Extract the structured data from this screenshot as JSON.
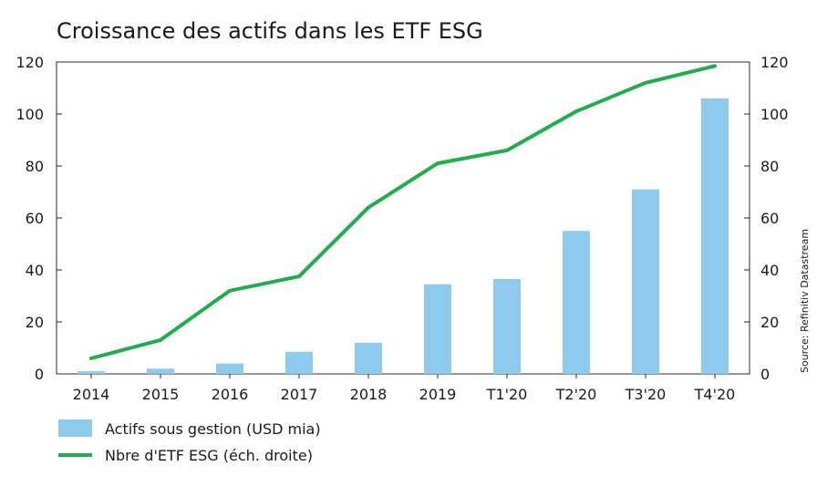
{
  "chart_data": {
    "type": "bar+line",
    "title": "Croissance des actifs dans les ETF ESG",
    "source": "Source: Refinitiv Datastream",
    "categories": [
      "2014",
      "2015",
      "2016",
      "2017",
      "2018",
      "2019",
      "T1'20",
      "T2'20",
      "T3'20",
      "T4'20"
    ],
    "y_left": {
      "ylim": [
        0,
        120
      ],
      "ticks": [
        "0",
        "20",
        "40",
        "60",
        "80",
        "100",
        "120"
      ]
    },
    "y_right": {
      "ylim": [
        0,
        120
      ],
      "ticks": [
        "0",
        "20",
        "40",
        "60",
        "80",
        "100",
        "120"
      ]
    },
    "series": [
      {
        "name": "Actifs sous gestion (USD mia)",
        "type": "bar",
        "axis": "left",
        "color": "#8ecbef",
        "values": [
          1,
          2,
          4,
          8.5,
          12,
          34.5,
          36.5,
          55,
          71,
          106
        ]
      },
      {
        "name": "Nbre d'ETF ESG (éch. droite)",
        "type": "line",
        "axis": "right",
        "color": "#1fae4b",
        "values": [
          6,
          13,
          32,
          37.5,
          64,
          81,
          86,
          101,
          112,
          118.5
        ]
      }
    ],
    "grid": false,
    "legend": "bottom-left"
  }
}
